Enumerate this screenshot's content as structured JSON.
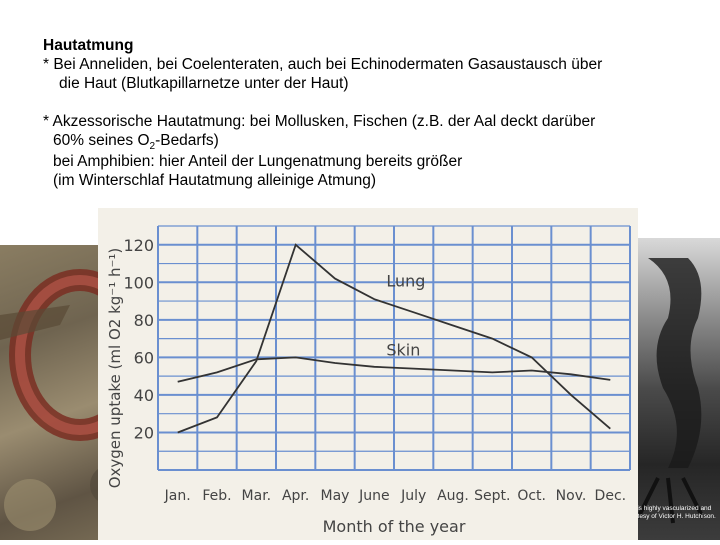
{
  "slide": {
    "title": "Hautatmung",
    "bullet1_line1": "* Bei Anneliden, bei Coelenteraten, auch bei Echinodermaten Gasaustausch über",
    "bullet1_line2": "die Haut (Blutkapillarnetze unter der Haut)",
    "bullet2_line1": "* Akzessorische Hautatmung: bei Mollusken, Fischen (z.B. der Aal deckt darüber",
    "bullet2_line2_pre": "60% seines O",
    "bullet2_line2_sub": "2",
    "bullet2_line2_post": "-Bedarfs)",
    "bullet2_line3": "bei Amphibien: hier Anteil der Lungenatmung bereits größer",
    "bullet2_line4": "(im Winterschlaf Hautatmung alleinige Atmung)"
  },
  "photos": {
    "left": "earthworm-photo",
    "right": "frog-photo",
    "right_caption_line1": "... is highly vascularized and",
    "right_caption_line2": "...rtesy of Victor H. Hutchison."
  },
  "chart_data": {
    "type": "line",
    "title": "",
    "xlabel": "Month of the year",
    "ylabel": "Oxygen uptake (ml O2 kg⁻¹ h⁻¹)",
    "categories": [
      "Jan.",
      "Feb.",
      "Mar.",
      "Apr.",
      "May",
      "June",
      "July",
      "Aug.",
      "Sept.",
      "Oct.",
      "Nov.",
      "Dec."
    ],
    "ylim": [
      0,
      130
    ],
    "yticks": [
      20,
      40,
      60,
      80,
      100,
      120
    ],
    "grid": true,
    "series": [
      {
        "name": "Lung",
        "values": [
          20,
          28,
          58,
          120,
          102,
          91,
          84,
          77,
          70,
          60,
          40,
          22
        ]
      },
      {
        "name": "Skin",
        "values": [
          47,
          52,
          59,
          60,
          57,
          55,
          54,
          53,
          52,
          53,
          51,
          48
        ]
      }
    ],
    "colors": {
      "line": "#333333",
      "grid": "#6a8fd0",
      "paper": "#f3f0e8"
    }
  }
}
